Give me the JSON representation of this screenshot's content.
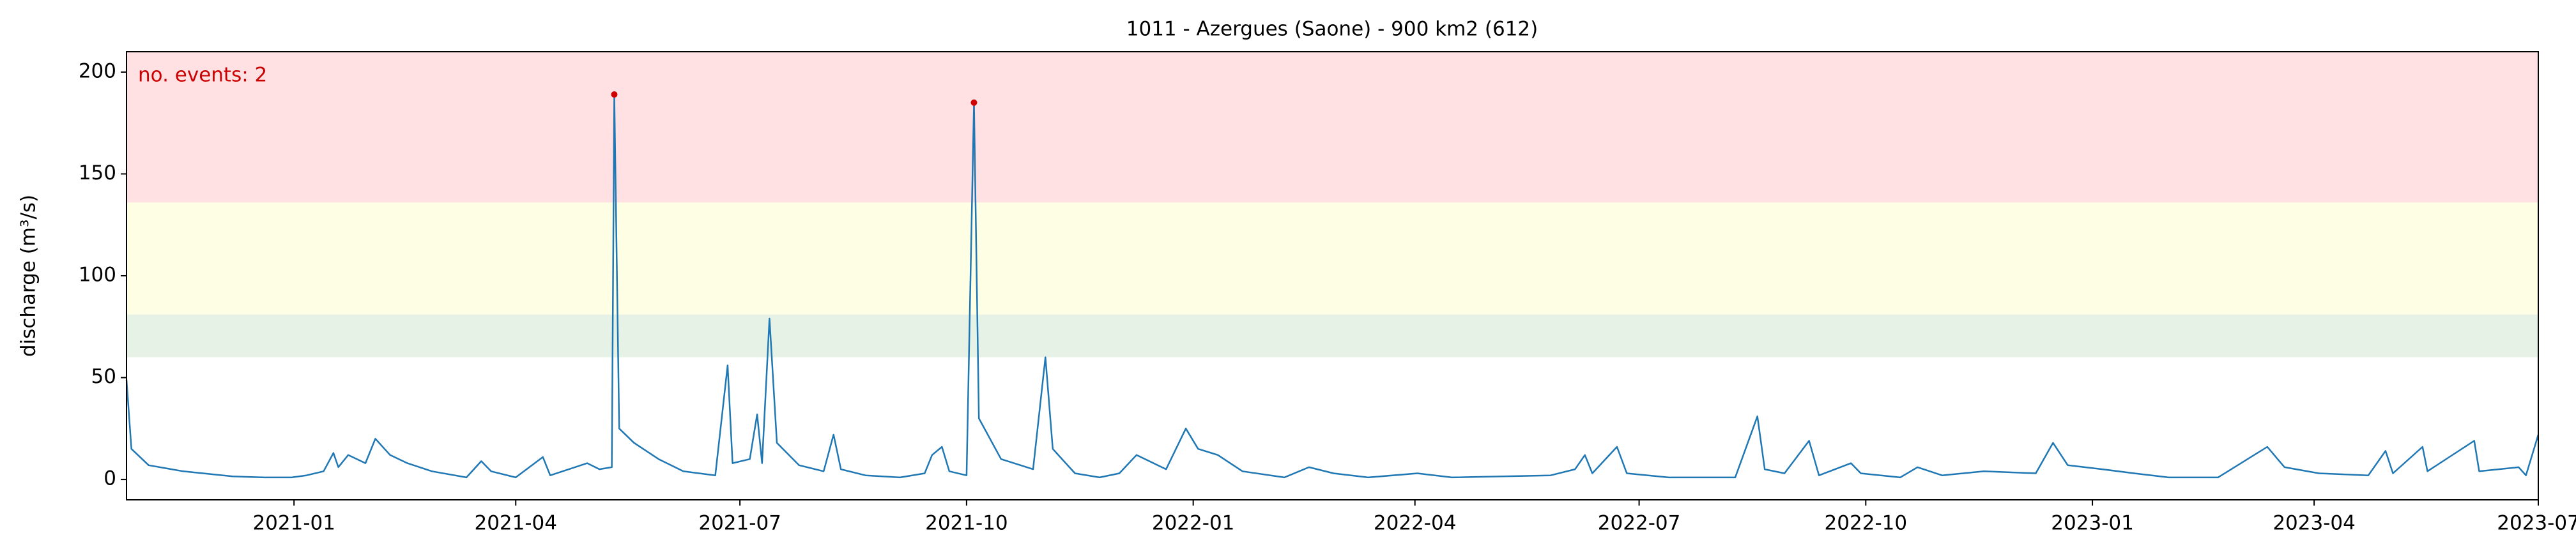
{
  "chart_data": {
    "type": "line",
    "title": "1011 - Azergues (Saone) - 900 km2 (612)",
    "ylabel": "discharge (m³/s)",
    "annotation": "no. events: 2",
    "annotation_color": "#cc0000",
    "xlim": [
      "2020-10-25",
      "2023-07"
    ],
    "xticks": [
      "2021-01",
      "2021-04",
      "2021-07",
      "2021-10",
      "2022-01",
      "2022-04",
      "2022-07",
      "2022-10",
      "2023-01",
      "2023-04",
      "2023-07"
    ],
    "ylim": [
      -10,
      210
    ],
    "yticks": [
      0,
      50,
      100,
      150,
      200
    ],
    "bands": [
      {
        "from": 60,
        "to": 81,
        "color": "#e6f2e6"
      },
      {
        "from": 81,
        "to": 136,
        "color": "#fefee4"
      },
      {
        "from": 136,
        "to": 210,
        "color": "#ffe0e3"
      }
    ],
    "series": [
      {
        "color": "#1f77b4",
        "x": [
          "2020-10-25",
          "2020-10-27",
          "2020-11-03",
          "2020-11-17",
          "2020-12-07",
          "2020-12-20",
          "2020-12-31",
          "2021-01-06",
          "2021-01-13",
          "2021-01-17",
          "2021-01-19",
          "2021-01-23",
          "2021-01-30",
          "2021-02-03",
          "2021-02-09",
          "2021-02-16",
          "2021-02-26",
          "2021-03-12",
          "2021-03-18",
          "2021-03-22",
          "2021-04-01",
          "2021-04-12",
          "2021-04-15",
          "2021-04-30",
          "2021-05-05",
          "2021-05-10",
          "2021-05-11",
          "2021-05-13",
          "2021-05-19",
          "2021-05-29",
          "2021-06-08",
          "2021-06-21",
          "2021-06-26",
          "2021-06-28",
          "2021-07-05",
          "2021-07-08",
          "2021-07-10",
          "2021-07-13",
          "2021-07-16",
          "2021-07-25",
          "2021-08-04",
          "2021-08-08",
          "2021-08-11",
          "2021-08-21",
          "2021-09-04",
          "2021-09-14",
          "2021-09-17",
          "2021-09-21",
          "2021-09-24",
          "2021-10-01",
          "2021-10-04",
          "2021-10-06",
          "2021-10-15",
          "2021-10-28",
          "2021-11-02",
          "2021-11-05",
          "2021-11-14",
          "2021-11-24",
          "2021-12-02",
          "2021-12-09",
          "2021-12-21",
          "2021-12-29",
          "2022-01-03",
          "2022-01-11",
          "2022-01-21",
          "2022-02-07",
          "2022-02-17",
          "2022-02-27",
          "2022-03-13",
          "2022-04-02",
          "2022-04-16",
          "2022-05-26",
          "2022-06-05",
          "2022-06-09",
          "2022-06-12",
          "2022-06-22",
          "2022-06-26",
          "2022-07-13",
          "2022-08-09",
          "2022-08-18",
          "2022-08-21",
          "2022-08-29",
          "2022-09-08",
          "2022-09-12",
          "2022-09-25",
          "2022-09-29",
          "2022-10-15",
          "2022-10-22",
          "2022-11-01",
          "2022-11-18",
          "2022-12-09",
          "2022-12-16",
          "2022-12-22",
          "2023-01-05",
          "2023-01-18",
          "2023-02-01",
          "2023-02-21",
          "2023-03-13",
          "2023-03-20",
          "2023-04-03",
          "2023-04-23",
          "2023-04-30",
          "2023-05-03",
          "2023-05-15",
          "2023-05-17",
          "2023-06-05",
          "2023-06-07",
          "2023-06-23",
          "2023-06-26",
          "2023-07-01"
        ],
        "values": [
          49,
          15,
          7,
          4,
          1.5,
          1,
          1,
          2,
          4,
          13,
          6,
          12,
          8,
          20,
          12,
          8,
          4,
          1,
          9,
          4,
          1,
          11,
          2,
          8,
          5,
          6,
          189,
          25,
          18,
          10,
          4,
          2,
          56,
          8,
          10,
          32,
          8,
          79,
          18,
          7,
          4,
          22,
          5,
          2,
          1,
          3,
          12,
          16,
          4,
          2,
          185,
          30,
          10,
          5,
          60,
          15,
          3,
          1,
          3,
          12,
          5,
          25,
          15,
          12,
          4,
          1,
          6,
          3,
          1,
          3,
          1,
          2,
          5,
          12,
          3,
          16,
          3,
          1,
          1,
          31,
          5,
          3,
          19,
          2,
          8,
          3,
          1,
          6,
          2,
          4,
          3,
          18,
          7,
          5,
          3,
          1,
          1,
          16,
          6,
          3,
          2,
          14,
          3,
          16,
          4,
          19,
          4,
          6,
          2,
          22
        ]
      },
      {
        "name": "events",
        "color": "#d00000",
        "x": [
          "2021-05-11",
          "2021-10-04"
        ],
        "values": [
          189,
          185
        ]
      }
    ]
  }
}
